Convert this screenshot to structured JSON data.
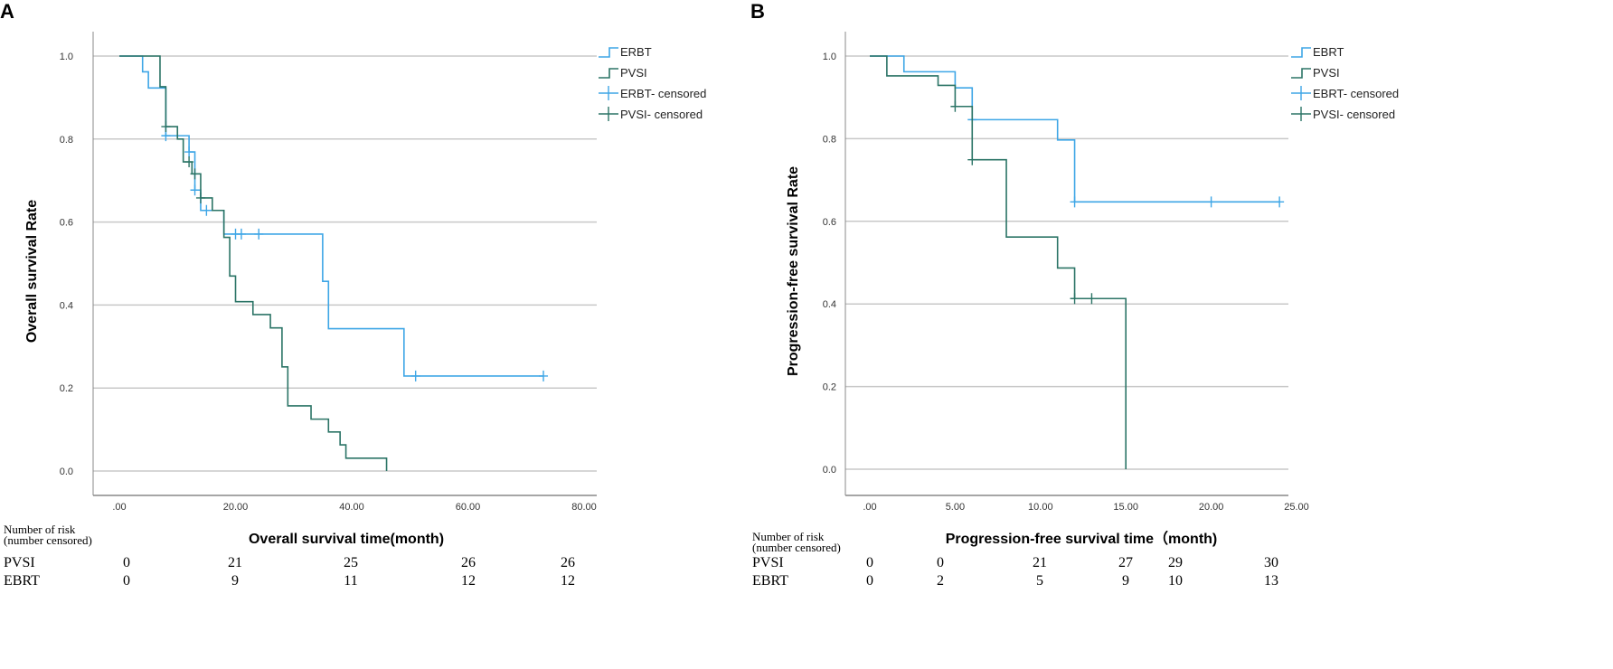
{
  "colors": {
    "blue": "#3ea6e6",
    "green": "#2b7466",
    "grid": "#c8c8c8",
    "axis": "#888888"
  },
  "chart_data": [
    {
      "panel_label": "A",
      "type": "line",
      "subtype": "kaplan-meier",
      "xlabel": "Overall survival time(month)",
      "ylabel": "Overall survival Rate",
      "xlim": [
        0,
        80
      ],
      "ylim": [
        0,
        1
      ],
      "xticks": [
        ".00",
        "20.00",
        "40.00",
        "60.00",
        "80.00"
      ],
      "xtick_values": [
        0,
        20,
        40,
        60,
        80
      ],
      "yticks": [
        "0.0",
        "0.2",
        "0.4",
        "0.6",
        "0.8",
        "1.0"
      ],
      "ytick_values": [
        0,
        0.2,
        0.4,
        0.6,
        0.8,
        1.0
      ],
      "grid": true,
      "legend_placement": "right",
      "legend": [
        "ERBT",
        "PVSI",
        "ERBT- censored",
        "PVSI- censored"
      ],
      "series": [
        {
          "name": "ERBT",
          "color": "blue",
          "steps": [
            [
              0,
              1.0
            ],
            [
              4,
              0.962
            ],
            [
              5,
              0.923
            ],
            [
              8,
              0.808
            ],
            [
              12,
              0.769
            ],
            [
              13,
              0.677
            ],
            [
              14,
              0.628
            ],
            [
              18,
              0.571
            ],
            [
              35,
              0.457
            ],
            [
              36,
              0.343
            ],
            [
              49,
              0.229
            ]
          ],
          "end": 73,
          "censored": [
            8,
            12,
            13,
            15,
            20,
            21,
            24,
            51,
            73
          ]
        },
        {
          "name": "PVSI",
          "color": "green",
          "steps": [
            [
              0,
              1.0
            ],
            [
              7,
              0.926
            ],
            [
              8,
              0.83
            ],
            [
              10,
              0.8
            ],
            [
              11,
              0.745
            ],
            [
              12.5,
              0.716
            ],
            [
              14,
              0.658
            ],
            [
              16,
              0.628
            ],
            [
              18,
              0.563
            ],
            [
              19,
              0.47
            ],
            [
              20,
              0.408
            ],
            [
              23,
              0.377
            ],
            [
              26,
              0.345
            ],
            [
              28,
              0.251
            ],
            [
              29,
              0.157
            ],
            [
              33,
              0.125
            ],
            [
              36,
              0.094
            ],
            [
              38,
              0.063
            ],
            [
              39,
              0.031
            ],
            [
              46,
              0.0
            ]
          ],
          "end": 46,
          "censored": [
            8,
            12,
            13,
            14
          ]
        }
      ],
      "risk_table": {
        "header": [
          "Number of risk",
          "(number censored)"
        ],
        "rows": [
          {
            "label": "PVSI",
            "values": [
              "0",
              "21",
              "25",
              "26",
              "26"
            ]
          },
          {
            "label": "EBRT",
            "values": [
              "0",
              "9",
              "11",
              "12",
              "12"
            ]
          }
        ]
      }
    },
    {
      "panel_label": "B",
      "type": "line",
      "subtype": "kaplan-meier",
      "xlabel": "Progression-free survival time（month)",
      "ylabel": "Progression-free survival Rate",
      "xlim": [
        0,
        25
      ],
      "ylim": [
        0,
        1
      ],
      "xticks": [
        ".00",
        "5.00",
        "10.00",
        "15.00",
        "20.00",
        "25.00"
      ],
      "xtick_values": [
        0,
        5,
        10,
        15,
        20,
        25
      ],
      "yticks": [
        "0.0",
        "0.2",
        "0.4",
        "0.6",
        "0.8",
        "1.0"
      ],
      "ytick_values": [
        0,
        0.2,
        0.4,
        0.6,
        0.8,
        1.0
      ],
      "grid": true,
      "legend_placement": "right",
      "legend": [
        "EBRT",
        "PVSI",
        "EBRT- censored",
        "PVSI- censored"
      ],
      "series": [
        {
          "name": "EBRT",
          "color": "blue",
          "steps": [
            [
              0,
              1.0
            ],
            [
              2,
              0.962
            ],
            [
              5,
              0.923
            ],
            [
              6,
              0.846
            ],
            [
              11,
              0.797
            ],
            [
              12,
              0.647
            ]
          ],
          "end": 24,
          "censored": [
            6,
            12,
            20,
            24
          ]
        },
        {
          "name": "PVSI",
          "color": "green",
          "steps": [
            [
              0,
              1.0
            ],
            [
              1,
              0.952
            ],
            [
              4,
              0.929
            ],
            [
              5,
              0.878
            ],
            [
              6,
              0.749
            ],
            [
              8,
              0.562
            ],
            [
              11,
              0.487
            ],
            [
              12,
              0.413
            ],
            [
              15,
              0.0
            ]
          ],
          "end": 15,
          "censored": [
            5,
            6,
            12,
            13
          ]
        }
      ],
      "risk_table": {
        "header": [
          "Number of risk",
          "(number censored)"
        ],
        "rows": [
          {
            "label": "PVSI",
            "values": [
              "0",
              "0",
              "21",
              "27",
              "29",
              "30"
            ]
          },
          {
            "label": "EBRT",
            "values": [
              "0",
              "2",
              "5",
              "9",
              "10",
              "13"
            ]
          }
        ]
      }
    }
  ]
}
